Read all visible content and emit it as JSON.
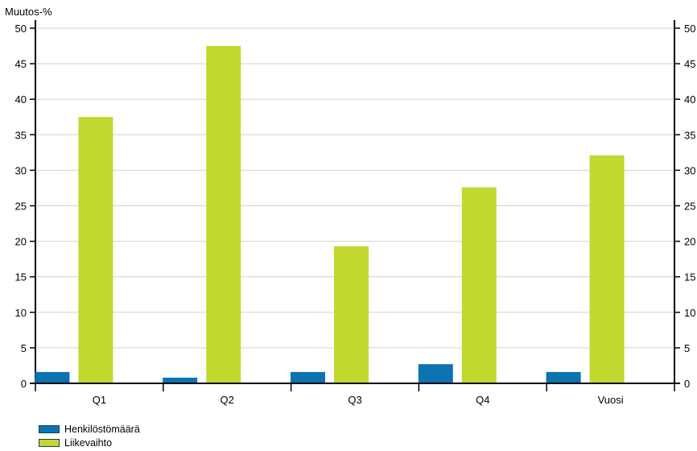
{
  "chart_data": {
    "type": "bar",
    "ylabel": "Muutos-%",
    "categories": [
      "Q1",
      "Q2",
      "Q3",
      "Q4",
      "Vuosi"
    ],
    "ylim": [
      0,
      50
    ],
    "yticks": [
      0,
      5,
      10,
      15,
      20,
      25,
      30,
      35,
      40,
      45,
      50
    ],
    "grid": true,
    "legend_position": "bottom-left",
    "series": [
      {
        "name": "Henkilöstömäärä",
        "color": "#0a73b0",
        "values": [
          1.6,
          0.8,
          1.6,
          2.7,
          1.6
        ]
      },
      {
        "name": "Liikevaihto",
        "color": "#c2d831",
        "values": [
          37.5,
          47.5,
          19.3,
          27.6,
          32.1
        ]
      }
    ]
  }
}
